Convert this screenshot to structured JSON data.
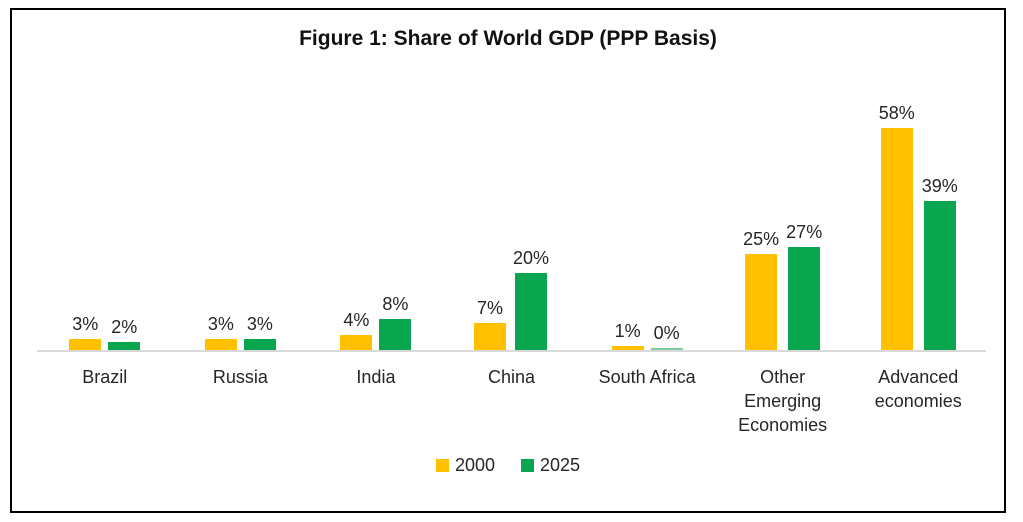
{
  "chart_data": {
    "type": "bar",
    "title": "Figure 1: Share of World GDP (PPP Basis)",
    "categories": [
      "Brazil",
      "Russia",
      "India",
      "China",
      "South Africa",
      "Other Emerging Economies",
      "Advanced economies"
    ],
    "series": [
      {
        "name": "2000",
        "color": "#FFC000",
        "values": [
          3,
          3,
          4,
          7,
          1,
          25,
          58
        ]
      },
      {
        "name": "2025",
        "color": "#0AA54F",
        "values": [
          2,
          3,
          8,
          20,
          0,
          27,
          39
        ]
      }
    ],
    "data_label_format": "percent",
    "ylim": [
      0,
      60
    ],
    "grid": false,
    "legend_position": "bottom",
    "axis_line_color": "#D9D9D9",
    "zero_value_bar_color": "#7FCD9E",
    "frame_border_color": "#000000",
    "background_color": "#FFFFFF",
    "text_color": "#262626"
  }
}
